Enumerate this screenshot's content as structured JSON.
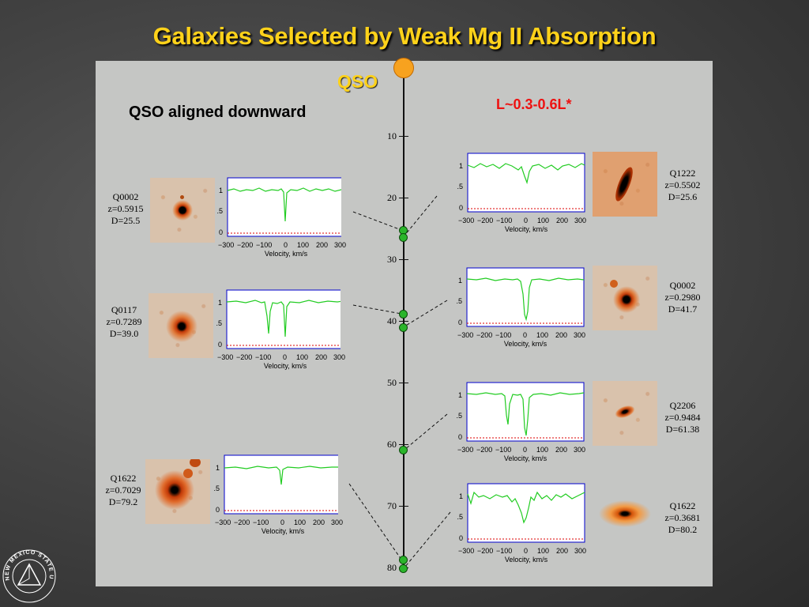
{
  "slide": {
    "title": "Galaxies Selected by Weak Mg II Absorption",
    "qso_label": "QSO",
    "subtitle": "QSO aligned downward",
    "luminosity": "L~0.3-0.6L*",
    "logo_text": "NEW MEXICO STATE UNIVERSITY"
  },
  "axis": {
    "ticks": [
      "10",
      "20",
      "30",
      "40",
      "50",
      "60",
      "70",
      "80"
    ]
  },
  "spectra_axis": {
    "x_ticks": [
      "−300",
      "−200",
      "−100",
      "0",
      "100",
      "200",
      "300"
    ],
    "y_ticks": [
      "1",
      ".5",
      "0"
    ],
    "x_title": "Velocity, km/s"
  },
  "left_galaxies": [
    {
      "name": "Q0002",
      "z": "z=0.5915",
      "d": "D=25.5"
    },
    {
      "name": "Q0117",
      "z": "z=0.7289",
      "d": "D=39.0"
    },
    {
      "name": "Q1622",
      "z": "z=0.7029",
      "d": "D=79.2"
    }
  ],
  "right_galaxies": [
    {
      "name": "Q1222",
      "z": "z=0.5502",
      "d": "D=25.6"
    },
    {
      "name": "Q0002",
      "z": "z=0.2980",
      "d": "D=41.7"
    },
    {
      "name": "Q2206",
      "z": "z=0.9484",
      "d": "D=61.38"
    },
    {
      "name": "Q1622",
      "z": "z=0.3681",
      "d": "D=80.2"
    }
  ],
  "colors": {
    "title": "#ffd21a",
    "spectrum": "#22cc22",
    "marker": "#2bb52b",
    "lum": "#ee1111",
    "qso": "#f7a21f"
  }
}
